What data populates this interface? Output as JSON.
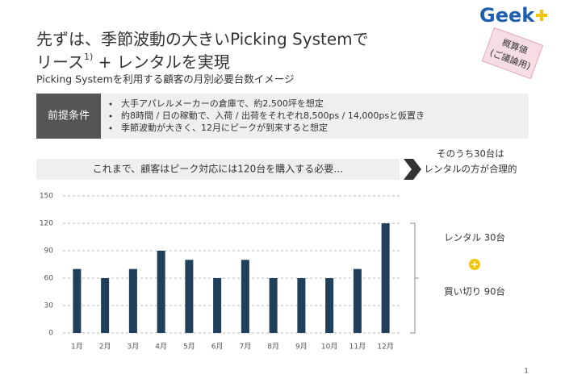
{
  "logo": "Geek",
  "title_line1": "先ずは、季節波動の大きいPicking Systemで",
  "title_line2": {
    "main": "リース",
    "sup": "1)",
    "rest": " + レンタルを実現"
  },
  "subtitle": "Picking Systemを利用する顧客の月別必要台数イメージ",
  "stamp": [
    "概算値",
    "(ご議論用)"
  ],
  "premise": {
    "label": "前提条件",
    "items": [
      "大手アパレルメーカーの倉庫で、約2,500坪を想定",
      "約8時間 / 日の稼動で、入荷 / 出荷をそれぞれ8,500ps / 14,000psと仮置き",
      "季節波動が大きく、12月にピークが到来すると想定"
    ]
  },
  "callout": [
    "そのうち30台は",
    "レンタルの方が合理的"
  ],
  "breakdown": {
    "rental": "レンタル 30台",
    "purchase": "買い切り 90台"
  },
  "page_number": "1",
  "chart_data": {
    "type": "bar",
    "title": "これまで、顧客はピーク対応には120台を購入する必要…",
    "categories": [
      "1月",
      "2月",
      "3月",
      "4月",
      "5月",
      "6月",
      "7月",
      "8月",
      "9月",
      "10月",
      "11月",
      "12月"
    ],
    "values": [
      70,
      60,
      70,
      90,
      80,
      60,
      80,
      60,
      60,
      60,
      70,
      120
    ],
    "color": "#1f3f5b",
    "ylim": [
      0,
      150
    ],
    "yticks": [
      0,
      30,
      60,
      90,
      120,
      150
    ],
    "grid": true
  }
}
